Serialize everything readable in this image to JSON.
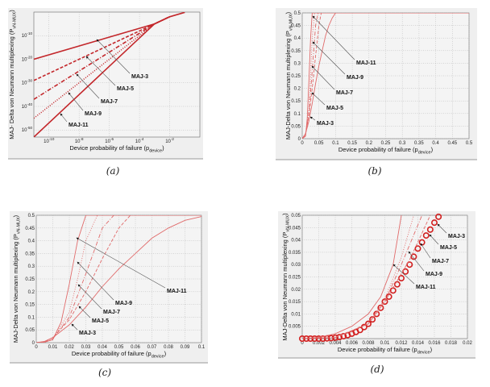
{
  "chart_data": [
    {
      "id": "a",
      "caption": "(a)",
      "type": "line",
      "xscale": "log",
      "yscale": "log",
      "xlim": [
        1e-11,
        1
      ],
      "ylim": [
        1e-53,
        1
      ],
      "xticks": [
        1e-10,
        1e-08,
        1e-06,
        0.0001,
        0.01
      ],
      "xtick_labels": [
        "10^-10",
        "10^-8",
        "10^-6",
        "10^-4",
        "10^-2"
      ],
      "yticks": [
        1e-10,
        1e-20,
        1e-30,
        1e-40,
        1e-50
      ],
      "ytick_labels": [
        "10^-10",
        "10^-20",
        "10^-30",
        "10^-40",
        "10^-50"
      ],
      "xlabel": "Device probability of failure (p",
      "xlabel_sub": "device",
      "xlabel_end": ")",
      "ylabel": "MAJ- Delta von Neumann multiplexing (P",
      "ylabel_sub": "vN-MUX",
      "ylabel_end": ")",
      "grid": true,
      "color": "#c3272b",
      "series": [
        {
          "name": "MAJ-3",
          "style": "solid",
          "x": [
            1e-11,
            0.001,
            0.01,
            0.1
          ],
          "y": [
            1e-20,
            1e-05,
            0.01,
            0.8
          ]
        },
        {
          "name": "MAJ-5",
          "style": "dashed",
          "x": [
            1e-11,
            0.001,
            0.01
          ],
          "y": [
            1e-29,
            1e-05,
            0.01
          ]
        },
        {
          "name": "MAJ-7",
          "style": "dashdot",
          "x": [
            1e-11,
            0.001,
            0.01
          ],
          "y": [
            1e-37,
            1e-05,
            0.01
          ]
        },
        {
          "name": "MAJ-9",
          "style": "dotted",
          "x": [
            1e-11,
            0.001,
            0.01
          ],
          "y": [
            1e-45,
            1e-05,
            0.01
          ]
        },
        {
          "name": "MAJ-11",
          "style": "solid",
          "x": [
            1e-11,
            0.001,
            0.01
          ],
          "y": [
            1e-53,
            1e-05,
            0.01
          ]
        }
      ],
      "annotations": [
        "MAJ-3",
        "MAJ-5",
        "MAJ-7",
        "MAJ-9",
        "MAJ-11"
      ]
    },
    {
      "id": "b",
      "caption": "(b)",
      "type": "line",
      "xscale": "linear",
      "yscale": "linear",
      "xlim": [
        0,
        0.5
      ],
      "ylim": [
        0,
        0.5
      ],
      "xticks": [
        0,
        0.05,
        0.1,
        0.15,
        0.2,
        0.25,
        0.3,
        0.35,
        0.4,
        0.45,
        0.5
      ],
      "xtick_labels": [
        "0",
        "0.05",
        "0.1",
        "0.15",
        "0.2",
        "0.25",
        "0.3",
        "0.35",
        "0.4",
        "0.45",
        "0.5"
      ],
      "yticks": [
        0,
        0.05,
        0.1,
        0.15,
        0.2,
        0.25,
        0.3,
        0.35,
        0.4,
        0.45,
        0.5
      ],
      "ytick_labels": [
        "0",
        "0.05",
        "0.1",
        "0.15",
        "0.2",
        "0.25",
        "0.3",
        "0.35",
        "0.4",
        "0.45",
        "0.5"
      ],
      "xlabel": "Device probability of failure (p",
      "xlabel_sub": "device",
      "xlabel_end": ")",
      "ylabel": "MAJ-Delta von Neumann multiplexing (P",
      "ylabel_sub": "vN-MUX",
      "ylabel_end": ")",
      "grid": true,
      "color": "#e06a6a",
      "series": [
        {
          "name": "MAJ-3",
          "style": "solid",
          "x": [
            0,
            0.01,
            0.02,
            0.03,
            0.04,
            0.05,
            0.06,
            0.07,
            0.08,
            0.09,
            0.1,
            0.5
          ],
          "y": [
            0,
            0.02,
            0.07,
            0.14,
            0.22,
            0.29,
            0.35,
            0.41,
            0.45,
            0.48,
            0.5,
            0.5
          ]
        },
        {
          "name": "MAJ-5",
          "style": "dashed",
          "x": [
            0,
            0.01,
            0.02,
            0.03,
            0.04,
            0.05,
            0.057,
            0.5
          ],
          "y": [
            0,
            0.02,
            0.09,
            0.2,
            0.33,
            0.45,
            0.5,
            0.5
          ]
        },
        {
          "name": "MAJ-7",
          "style": "dashdot",
          "x": [
            0,
            0.01,
            0.02,
            0.03,
            0.04,
            0.047,
            0.5
          ],
          "y": [
            0,
            0.015,
            0.1,
            0.27,
            0.45,
            0.5,
            0.5
          ]
        },
        {
          "name": "MAJ-9",
          "style": "dotted",
          "x": [
            0,
            0.01,
            0.02,
            0.025,
            0.03,
            0.037,
            0.5
          ],
          "y": [
            0,
            0.01,
            0.12,
            0.25,
            0.4,
            0.5,
            0.5
          ]
        },
        {
          "name": "MAJ-11",
          "style": "solid",
          "x": [
            0,
            0.01,
            0.015,
            0.02,
            0.025,
            0.03,
            0.5
          ],
          "y": [
            0,
            0.01,
            0.08,
            0.23,
            0.4,
            0.5,
            0.5
          ]
        }
      ],
      "annotations": [
        "MAJ-11",
        "MAJ-9",
        "MAJ-7",
        "MAJ-5",
        "MAJ-3"
      ]
    },
    {
      "id": "c",
      "caption": "(c)",
      "type": "line",
      "xscale": "linear",
      "yscale": "linear",
      "xlim": [
        0,
        0.1
      ],
      "ylim": [
        0,
        0.5
      ],
      "xticks": [
        0,
        0.01,
        0.02,
        0.03,
        0.04,
        0.05,
        0.06,
        0.07,
        0.08,
        0.09,
        0.1
      ],
      "xtick_labels": [
        "0",
        "0.01",
        "0.02",
        "0.03",
        "0.04",
        "0.05",
        "0.06",
        "0.07",
        "0.08",
        "0.09",
        "0.1"
      ],
      "yticks": [
        0,
        0.05,
        0.1,
        0.15,
        0.2,
        0.25,
        0.3,
        0.35,
        0.4,
        0.45,
        0.5
      ],
      "ytick_labels": [
        "0",
        "0.05",
        "0.1",
        "0.15",
        "0.2",
        "0.25",
        "0.3",
        "0.35",
        "0.4",
        "0.45",
        "0.5"
      ],
      "xlabel": "Device probability of failure (p",
      "xlabel_sub": "device",
      "xlabel_end": ")",
      "ylabel": "MAJ-Delta von Neumann multiplexing (P",
      "ylabel_sub": "vN-MUX",
      "ylabel_end": ")",
      "grid": true,
      "color": "#e06a6a",
      "series": [
        {
          "name": "MAJ-3",
          "style": "solid",
          "x": [
            0,
            0.005,
            0.01,
            0.02,
            0.03,
            0.04,
            0.05,
            0.06,
            0.07,
            0.08,
            0.09,
            0.1
          ],
          "y": [
            0,
            0.005,
            0.02,
            0.07,
            0.14,
            0.22,
            0.29,
            0.35,
            0.41,
            0.45,
            0.48,
            0.495
          ]
        },
        {
          "name": "MAJ-5",
          "style": "dashed",
          "x": [
            0,
            0.005,
            0.01,
            0.02,
            0.03,
            0.04,
            0.05,
            0.057,
            0.1
          ],
          "y": [
            0,
            0.004,
            0.02,
            0.09,
            0.2,
            0.33,
            0.45,
            0.5,
            0.5
          ]
        },
        {
          "name": "MAJ-7",
          "style": "dashdot",
          "x": [
            0,
            0.005,
            0.01,
            0.02,
            0.03,
            0.04,
            0.047,
            0.1
          ],
          "y": [
            0,
            0.003,
            0.015,
            0.1,
            0.27,
            0.45,
            0.5,
            0.5
          ]
        },
        {
          "name": "MAJ-9",
          "style": "dotted",
          "x": [
            0,
            0.005,
            0.01,
            0.02,
            0.025,
            0.03,
            0.037,
            0.1
          ],
          "y": [
            0,
            0.002,
            0.012,
            0.12,
            0.25,
            0.4,
            0.5,
            0.5
          ]
        },
        {
          "name": "MAJ-11",
          "style": "solid",
          "x": [
            0,
            0.005,
            0.01,
            0.015,
            0.02,
            0.025,
            0.03,
            0.1
          ],
          "y": [
            0,
            0.002,
            0.012,
            0.08,
            0.23,
            0.4,
            0.5,
            0.5
          ]
        }
      ],
      "annotations": [
        "MAJ-11",
        "MAJ-9",
        "MAJ-7",
        "MAJ-5",
        "MAJ-3"
      ]
    },
    {
      "id": "d",
      "caption": "(d)",
      "type": "line",
      "xscale": "linear",
      "yscale": "linear",
      "xlim": [
        0,
        0.02
      ],
      "ylim": [
        0,
        0.05
      ],
      "xticks": [
        0,
        0.002,
        0.004,
        0.006,
        0.008,
        0.01,
        0.012,
        0.014,
        0.016,
        0.018,
        0.02
      ],
      "xtick_labels": [
        "0",
        "0.002",
        "0.004",
        "0.006",
        "0.008",
        "0.01",
        "0.012",
        "0.014",
        "0.016",
        "0.018",
        "0.02"
      ],
      "yticks": [
        0.005,
        0.01,
        0.015,
        0.02,
        0.025,
        0.03,
        0.035,
        0.04,
        0.045,
        0.05
      ],
      "ytick_labels": [
        "0.005",
        "0.01",
        "0.015",
        "0.02",
        "0.025",
        "0.03",
        "0.035",
        "0.04",
        "0.045",
        "0.05"
      ],
      "xlabel": "Device probability of failure (p",
      "xlabel_sub": "device",
      "xlabel_end": ")",
      "ylabel": "MAJ-Delta von Neumann multiplexing (P",
      "ylabel_sub": "vN-MUX",
      "ylabel_end": ")",
      "grid": true,
      "color": "#e06a6a",
      "marker_color": "#d21f1f",
      "series": [
        {
          "name": "MAJ-3",
          "style": "markers",
          "x": [
            0,
            0.0005,
            0.001,
            0.0015,
            0.002,
            0.0025,
            0.003,
            0.0035,
            0.004,
            0.0045,
            0.005,
            0.0055,
            0.006,
            0.0065,
            0.007,
            0.0075,
            0.008,
            0.0085,
            0.009,
            0.0095,
            0.01,
            0.0105,
            0.011,
            0.0115,
            0.012,
            0.0125,
            0.013,
            0.0135,
            0.014,
            0.0145,
            0.015,
            0.0155,
            0.016,
            0.0165
          ],
          "y": [
            0,
            0,
            0,
            0,
            0,
            0,
            0.0001,
            0.0002,
            0.0004,
            0.0006,
            0.001,
            0.0014,
            0.002,
            0.0027,
            0.0035,
            0.0047,
            0.006,
            0.0078,
            0.01,
            0.0125,
            0.015,
            0.017,
            0.0195,
            0.022,
            0.0245,
            0.0272,
            0.03,
            0.0332,
            0.0365,
            0.039,
            0.0418,
            0.0442,
            0.047,
            0.0494
          ]
        },
        {
          "name": "MAJ-5",
          "style": "dashed",
          "x": [
            0,
            0.004,
            0.008,
            0.01,
            0.013,
            0.0155
          ],
          "y": [
            0,
            0.0005,
            0.006,
            0.015,
            0.032,
            0.05
          ]
        },
        {
          "name": "MAJ-7",
          "style": "dashdot",
          "x": [
            0,
            0.004,
            0.008,
            0.01,
            0.012,
            0.0145
          ],
          "y": [
            0,
            0.0004,
            0.006,
            0.015,
            0.03,
            0.05
          ]
        },
        {
          "name": "MAJ-9",
          "style": "dotted",
          "x": [
            0,
            0.004,
            0.008,
            0.01,
            0.012,
            0.0135
          ],
          "y": [
            0,
            0.0004,
            0.006,
            0.016,
            0.033,
            0.05
          ]
        },
        {
          "name": "MAJ-11",
          "style": "solid",
          "x": [
            0,
            0.002,
            0.004,
            0.006,
            0.008,
            0.0095,
            0.011,
            0.012
          ],
          "y": [
            0,
            0.0005,
            0.002,
            0.005,
            0.01,
            0.017,
            0.03,
            0.05
          ]
        }
      ],
      "annotations": [
        "MAJ-3",
        "MAJ-5",
        "MAJ-7",
        "MAJ-9",
        "MAJ-11"
      ]
    }
  ]
}
